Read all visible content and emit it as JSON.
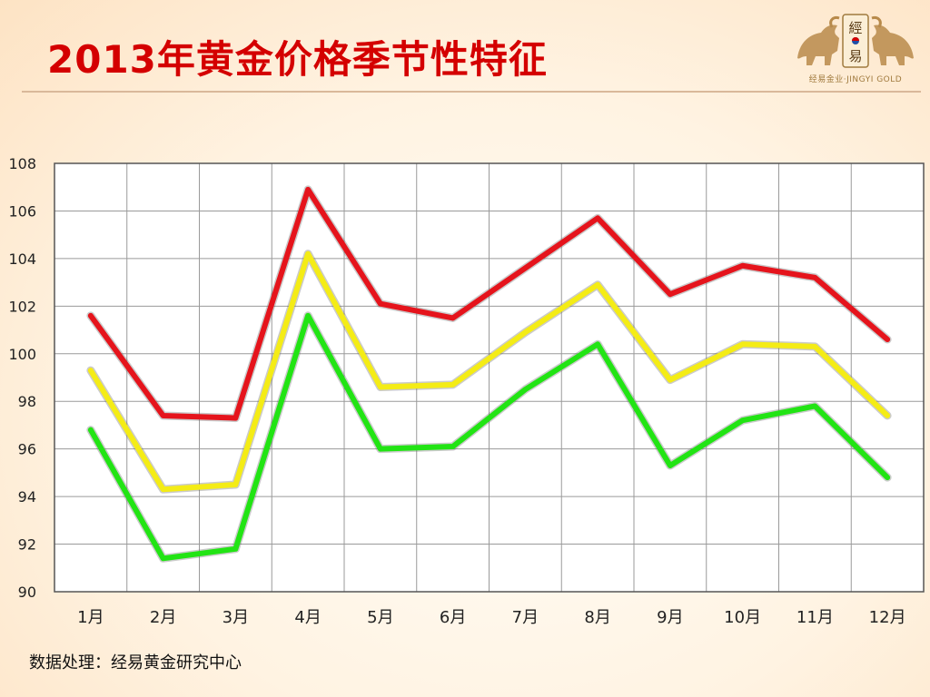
{
  "header": {
    "title": "2013年黄金价格季节性特征",
    "logo_glyphs": [
      "經",
      "易"
    ],
    "logo_tagline": "经易金业·JINGYI GOLD"
  },
  "footer": {
    "source": "数据处理：经易黄金研究中心"
  },
  "chart_data": {
    "type": "line",
    "categories": [
      "1月",
      "2月",
      "3月",
      "4月",
      "5月",
      "6月",
      "7月",
      "8月",
      "9月",
      "10月",
      "11月",
      "12月"
    ],
    "ylim": [
      90,
      108
    ],
    "yticks": [
      90,
      92,
      94,
      96,
      98,
      100,
      102,
      104,
      106,
      108
    ],
    "grid": true,
    "legend": "none",
    "series": [
      {
        "color": "#e5141c",
        "values": [
          101.6,
          97.4,
          97.3,
          106.9,
          102.1,
          101.5,
          103.6,
          105.7,
          102.5,
          103.7,
          103.2,
          100.6
        ]
      },
      {
        "color": "#f4ec16",
        "values": [
          99.3,
          94.3,
          94.5,
          104.2,
          98.6,
          98.7,
          100.9,
          102.9,
          98.9,
          100.4,
          100.3,
          97.4
        ]
      },
      {
        "color": "#22e414",
        "values": [
          96.8,
          91.4,
          91.8,
          101.6,
          96.0,
          96.1,
          98.5,
          100.4,
          95.3,
          97.2,
          97.8,
          94.8
        ]
      }
    ]
  }
}
